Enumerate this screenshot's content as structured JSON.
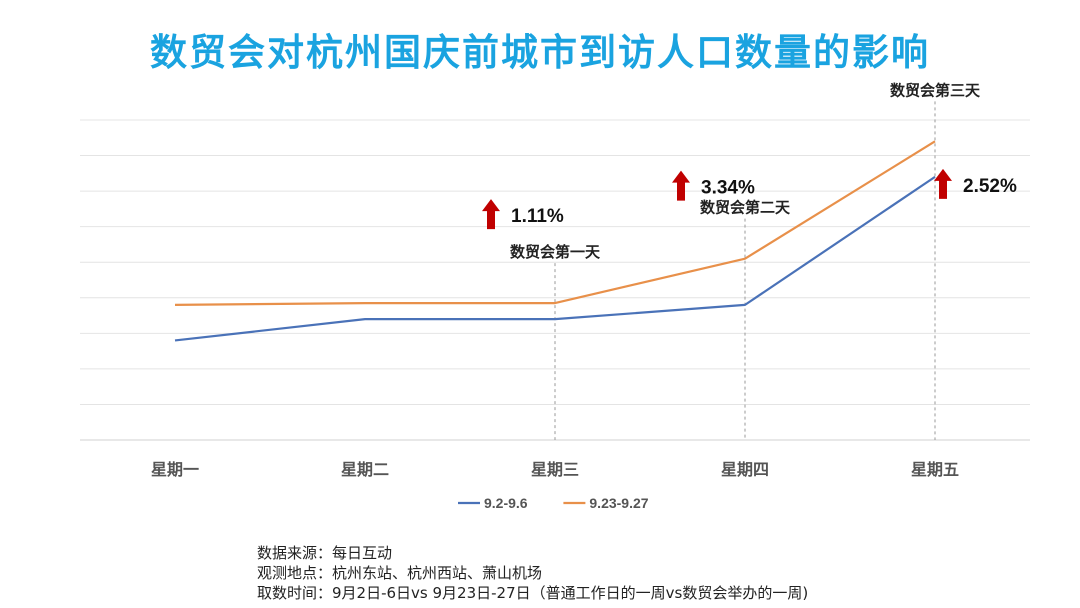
{
  "title": "数贸会对杭州国庆前城市到访人口数量的影响",
  "chart_data": {
    "type": "line",
    "categories": [
      "星期一",
      "星期二",
      "星期三",
      "星期四",
      "星期五"
    ],
    "ylim": [
      0,
      9
    ],
    "grid": true,
    "legend_placement": "bottom",
    "series": [
      {
        "name": "9.2-9.6",
        "color": "#4a72b8",
        "values": [
          2.8,
          3.4,
          3.4,
          3.8,
          7.4
        ]
      },
      {
        "name": "9.23-9.27",
        "color": "#e8904a",
        "values": [
          3.8,
          3.85,
          3.85,
          5.1,
          8.4
        ]
      }
    ],
    "event_labels": [
      {
        "category": "星期三",
        "text": "数贸会第一天"
      },
      {
        "category": "星期四",
        "text": "数贸会第二天"
      },
      {
        "category": "星期五",
        "text": "数贸会第三天"
      }
    ],
    "increase_labels": [
      {
        "category": "星期三",
        "text": "1.11%"
      },
      {
        "category": "星期四",
        "text": "3.34%"
      },
      {
        "category": "星期五",
        "text": "2.52%"
      }
    ],
    "arrow_color": "#c00000"
  },
  "notes": [
    "数据来源：每日互动",
    "观测地点：杭州东站、杭州西站、萧山机场",
    "取数时间：9月2日-6日vs 9月23日-27日（普通工作日的一周vs数贸会举办的一周)"
  ]
}
